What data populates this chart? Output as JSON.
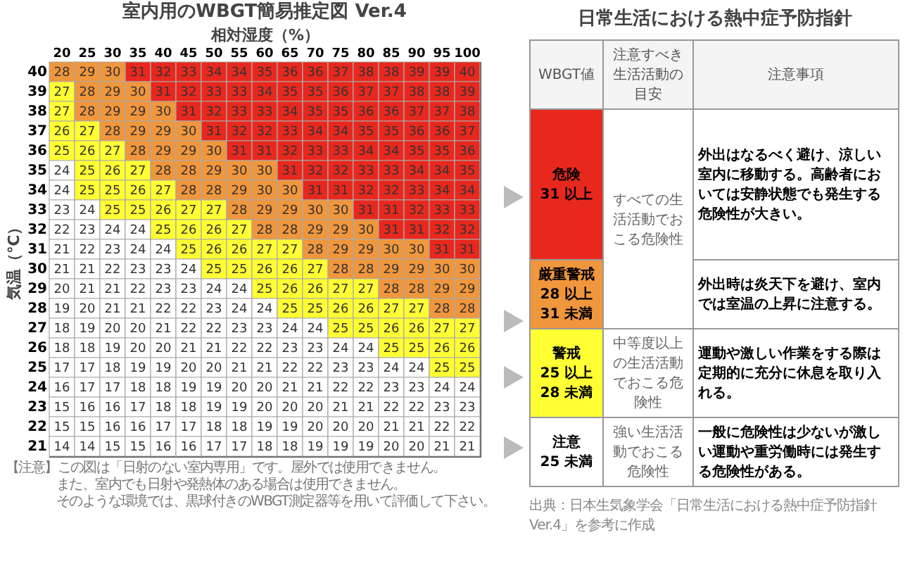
{
  "chart_data": [
    {
      "type": "heatmap",
      "title": "室内用のWBGT簡易推定図 Ver.4",
      "xlabel": "相対湿度（%）",
      "ylabel": "気温（℃）",
      "data_labels": true,
      "categories": [
        "20",
        "25",
        "30",
        "35",
        "40",
        "45",
        "50",
        "55",
        "60",
        "65",
        "70",
        "75",
        "80",
        "85",
        "90",
        "95",
        "100"
      ],
      "y_categories": [
        "40",
        "39",
        "38",
        "37",
        "36",
        "35",
        "34",
        "33",
        "32",
        "31",
        "30",
        "29",
        "28",
        "27",
        "26",
        "25",
        "24",
        "23",
        "22",
        "21"
      ],
      "cells": [
        [
          28,
          29,
          30,
          31,
          32,
          33,
          34,
          34,
          35,
          36,
          36,
          37,
          38,
          38,
          39,
          39,
          40
        ],
        [
          27,
          28,
          29,
          30,
          31,
          32,
          33,
          33,
          34,
          35,
          35,
          36,
          37,
          37,
          38,
          38,
          39
        ],
        [
          27,
          28,
          29,
          29,
          30,
          31,
          32,
          33,
          33,
          34,
          35,
          35,
          36,
          36,
          37,
          37,
          38
        ],
        [
          26,
          27,
          28,
          29,
          29,
          30,
          31,
          32,
          32,
          33,
          34,
          34,
          35,
          35,
          36,
          36,
          37
        ],
        [
          25,
          26,
          27,
          28,
          29,
          29,
          30,
          31,
          31,
          32,
          33,
          33,
          34,
          34,
          35,
          35,
          36
        ],
        [
          24,
          25,
          26,
          27,
          28,
          28,
          29,
          30,
          30,
          31,
          32,
          32,
          33,
          33,
          34,
          34,
          35
        ],
        [
          24,
          25,
          25,
          26,
          27,
          28,
          28,
          29,
          30,
          30,
          31,
          31,
          32,
          32,
          33,
          34,
          34
        ],
        [
          23,
          24,
          25,
          25,
          26,
          27,
          27,
          28,
          29,
          29,
          30,
          30,
          31,
          31,
          32,
          33,
          33
        ],
        [
          22,
          23,
          24,
          24,
          25,
          26,
          26,
          27,
          28,
          28,
          29,
          29,
          30,
          31,
          31,
          32,
          32
        ],
        [
          21,
          22,
          23,
          24,
          24,
          25,
          26,
          26,
          27,
          27,
          28,
          29,
          29,
          30,
          30,
          31,
          31
        ],
        [
          21,
          21,
          22,
          23,
          23,
          24,
          25,
          25,
          26,
          26,
          27,
          28,
          28,
          29,
          29,
          30,
          30
        ],
        [
          20,
          21,
          21,
          22,
          23,
          23,
          24,
          24,
          25,
          26,
          26,
          27,
          27,
          28,
          28,
          29,
          29
        ],
        [
          19,
          20,
          21,
          21,
          22,
          22,
          23,
          24,
          24,
          25,
          25,
          26,
          26,
          27,
          27,
          28,
          28
        ],
        [
          18,
          19,
          20,
          20,
          21,
          22,
          22,
          23,
          23,
          24,
          24,
          25,
          25,
          26,
          26,
          27,
          27
        ],
        [
          18,
          18,
          19,
          20,
          20,
          21,
          21,
          22,
          22,
          23,
          23,
          24,
          24,
          25,
          25,
          26,
          26
        ],
        [
          17,
          17,
          18,
          19,
          19,
          20,
          20,
          21,
          21,
          22,
          22,
          23,
          23,
          24,
          24,
          25,
          25
        ],
        [
          16,
          17,
          17,
          18,
          18,
          19,
          19,
          20,
          20,
          21,
          21,
          22,
          22,
          23,
          23,
          24,
          24
        ],
        [
          15,
          16,
          16,
          17,
          18,
          18,
          19,
          19,
          20,
          20,
          20,
          21,
          21,
          22,
          22,
          23,
          23
        ],
        [
          15,
          15,
          16,
          16,
          17,
          17,
          18,
          18,
          19,
          19,
          20,
          20,
          20,
          21,
          21,
          22,
          22
        ],
        [
          14,
          14,
          15,
          15,
          16,
          16,
          17,
          17,
          18,
          18,
          19,
          19,
          19,
          20,
          20,
          21,
          21
        ]
      ],
      "colors": [
        [
          "#f0963c",
          "#f0963c",
          "#f0963c",
          "#e8281e",
          "#e8281e",
          "#e8281e",
          "#e8281e",
          "#e8281e",
          "#e8281e",
          "#e8281e",
          "#e8281e",
          "#e8281e",
          "#e8281e",
          "#e8281e",
          "#e8281e",
          "#e8281e",
          "#e8281e"
        ],
        [
          "#ffff33",
          "#f0963c",
          "#f0963c",
          "#f0963c",
          "#e8281e",
          "#e8281e",
          "#e8281e",
          "#e8281e",
          "#e8281e",
          "#e8281e",
          "#e8281e",
          "#e8281e",
          "#e8281e",
          "#e8281e",
          "#e8281e",
          "#e8281e",
          "#e8281e"
        ],
        [
          "#ffff33",
          "#f0963c",
          "#f0963c",
          "#f0963c",
          "#f0963c",
          "#e8281e",
          "#e8281e",
          "#e8281e",
          "#e8281e",
          "#e8281e",
          "#e8281e",
          "#e8281e",
          "#e8281e",
          "#e8281e",
          "#e8281e",
          "#e8281e",
          "#e8281e"
        ],
        [
          "#ffff33",
          "#ffff33",
          "#f0963c",
          "#f0963c",
          "#f0963c",
          "#f0963c",
          "#e8281e",
          "#e8281e",
          "#e8281e",
          "#e8281e",
          "#e8281e",
          "#e8281e",
          "#e8281e",
          "#e8281e",
          "#e8281e",
          "#e8281e",
          "#e8281e"
        ],
        [
          "#ffff33",
          "#ffff33",
          "#ffff33",
          "#f0963c",
          "#f0963c",
          "#f0963c",
          "#f0963c",
          "#e8281e",
          "#e8281e",
          "#e8281e",
          "#e8281e",
          "#e8281e",
          "#e8281e",
          "#e8281e",
          "#e8281e",
          "#e8281e",
          "#e8281e"
        ],
        [
          "#ffffff",
          "#ffff33",
          "#ffff33",
          "#ffff33",
          "#f0963c",
          "#f0963c",
          "#f0963c",
          "#f0963c",
          "#f0963c",
          "#e8281e",
          "#e8281e",
          "#e8281e",
          "#e8281e",
          "#e8281e",
          "#e8281e",
          "#e8281e",
          "#e8281e"
        ],
        [
          "#ffffff",
          "#ffff33",
          "#ffff33",
          "#ffff33",
          "#ffff33",
          "#f0963c",
          "#f0963c",
          "#f0963c",
          "#f0963c",
          "#f0963c",
          "#e8281e",
          "#e8281e",
          "#e8281e",
          "#e8281e",
          "#e8281e",
          "#e8281e",
          "#e8281e"
        ],
        [
          "#ffffff",
          "#ffffff",
          "#ffff33",
          "#ffff33",
          "#ffff33",
          "#ffff33",
          "#ffff33",
          "#f0963c",
          "#f0963c",
          "#f0963c",
          "#f0963c",
          "#f0963c",
          "#e8281e",
          "#e8281e",
          "#e8281e",
          "#e8281e",
          "#e8281e"
        ],
        [
          "#ffffff",
          "#ffffff",
          "#ffffff",
          "#ffffff",
          "#ffff33",
          "#ffff33",
          "#ffff33",
          "#ffff33",
          "#f0963c",
          "#f0963c",
          "#f0963c",
          "#f0963c",
          "#f0963c",
          "#e8281e",
          "#e8281e",
          "#e8281e",
          "#e8281e"
        ],
        [
          "#ffffff",
          "#ffffff",
          "#ffffff",
          "#ffffff",
          "#ffffff",
          "#ffff33",
          "#ffff33",
          "#ffff33",
          "#ffff33",
          "#ffff33",
          "#f0963c",
          "#f0963c",
          "#f0963c",
          "#f0963c",
          "#f0963c",
          "#e8281e",
          "#e8281e"
        ],
        [
          "#ffffff",
          "#ffffff",
          "#ffffff",
          "#ffffff",
          "#ffffff",
          "#ffffff",
          "#ffff33",
          "#ffff33",
          "#ffff33",
          "#ffff33",
          "#ffff33",
          "#f0963c",
          "#f0963c",
          "#f0963c",
          "#f0963c",
          "#f0963c",
          "#f0963c"
        ],
        [
          "#ffffff",
          "#ffffff",
          "#ffffff",
          "#ffffff",
          "#ffffff",
          "#ffffff",
          "#ffffff",
          "#ffffff",
          "#ffff33",
          "#ffff33",
          "#ffff33",
          "#ffff33",
          "#ffff33",
          "#f0963c",
          "#f0963c",
          "#f0963c",
          "#f0963c"
        ],
        [
          "#ffffff",
          "#ffffff",
          "#ffffff",
          "#ffffff",
          "#ffffff",
          "#ffffff",
          "#ffffff",
          "#ffffff",
          "#ffffff",
          "#ffff33",
          "#ffff33",
          "#ffff33",
          "#ffff33",
          "#ffff33",
          "#ffff33",
          "#f0963c",
          "#f0963c"
        ],
        [
          "#ffffff",
          "#ffffff",
          "#ffffff",
          "#ffffff",
          "#ffffff",
          "#ffffff",
          "#ffffff",
          "#ffffff",
          "#ffffff",
          "#ffffff",
          "#ffffff",
          "#ffff33",
          "#ffff33",
          "#ffff33",
          "#ffff33",
          "#ffff33",
          "#ffff33"
        ],
        [
          "#ffffff",
          "#ffffff",
          "#ffffff",
          "#ffffff",
          "#ffffff",
          "#ffffff",
          "#ffffff",
          "#ffffff",
          "#ffffff",
          "#ffffff",
          "#ffffff",
          "#ffffff",
          "#ffffff",
          "#ffff33",
          "#ffff33",
          "#ffff33",
          "#ffff33"
        ],
        [
          "#ffffff",
          "#ffffff",
          "#ffffff",
          "#ffffff",
          "#ffffff",
          "#ffffff",
          "#ffffff",
          "#ffffff",
          "#ffffff",
          "#ffffff",
          "#ffffff",
          "#ffffff",
          "#ffffff",
          "#ffffff",
          "#ffffff",
          "#ffff33",
          "#ffff33"
        ],
        [
          "#ffffff",
          "#ffffff",
          "#ffffff",
          "#ffffff",
          "#ffffff",
          "#ffffff",
          "#ffffff",
          "#ffffff",
          "#ffffff",
          "#ffffff",
          "#ffffff",
          "#ffffff",
          "#ffffff",
          "#ffffff",
          "#ffffff",
          "#ffffff",
          "#ffffff"
        ],
        [
          "#ffffff",
          "#ffffff",
          "#ffffff",
          "#ffffff",
          "#ffffff",
          "#ffffff",
          "#ffffff",
          "#ffffff",
          "#ffffff",
          "#ffffff",
          "#ffffff",
          "#ffffff",
          "#ffffff",
          "#ffffff",
          "#ffffff",
          "#ffffff",
          "#ffffff"
        ],
        [
          "#ffffff",
          "#ffffff",
          "#ffffff",
          "#ffffff",
          "#ffffff",
          "#ffffff",
          "#ffffff",
          "#ffffff",
          "#ffffff",
          "#ffffff",
          "#ffffff",
          "#ffffff",
          "#ffffff",
          "#ffffff",
          "#ffffff",
          "#ffffff",
          "#ffffff"
        ],
        [
          "#ffffff",
          "#ffffff",
          "#ffffff",
          "#ffffff",
          "#ffffff",
          "#ffffff",
          "#ffffff",
          "#ffffff",
          "#ffffff",
          "#ffffff",
          "#ffffff",
          "#ffffff",
          "#ffffff",
          "#ffffff",
          "#ffffff",
          "#ffffff",
          "#ffffff"
        ]
      ],
      "annotations": [
        "【注意】この図は「日射のない室内専用」です。屋外では使用できません。",
        "また、室内でも日射や発熱体のある場合は使用できません。",
        "そのような環境では、黒球付きのWBGT測定器等を用いて評価して下さい。"
      ]
    },
    {
      "type": "other",
      "title": "日常生活における熱中症予防指針",
      "categories": [
        "危険\n31 以上",
        "厳重警戒\n28 以上\n31 未満",
        "警戒\n25 以上\n28 未満",
        "注意\n25 未満"
      ],
      "colors": [
        "#e8281e",
        "#f0963c",
        "#ffff33",
        "#ffffff"
      ],
      "cell_labels": [
        [
          "すべての生活活動でおこる危険性",
          "外出はなるべく避け、涼しい室内に移動する。高齢者においては安静状態でも発生する危険性が大きい。"
        ],
        [
          null,
          "外出時は炎天下を避け、室内では室温の上昇に注意する。"
        ],
        [
          "中等度以上の生活活動でおこる危険性",
          "運動や激しい作業をする際は定期的に充分に休息を取り入れる。"
        ],
        [
          "強い生活活動でおこる危険性",
          "一般に危険性は少ないが激しい運動や重労働時には発生する危険性がある。"
        ]
      ],
      "annotations": [
        "WBGT値",
        "注意すべき生活活動の目安",
        "注意事項",
        "出典：日本生気象学会「日常生活における熱中症予防指針 Ver.4」を参考に作成"
      ]
    }
  ]
}
